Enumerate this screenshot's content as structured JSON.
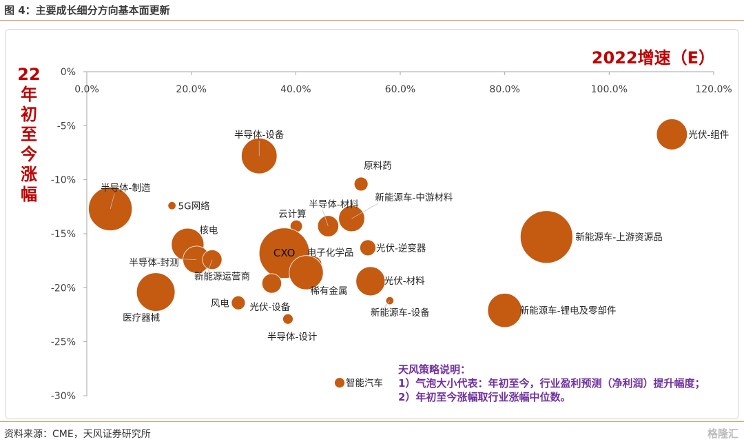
{
  "figure": {
    "title": "图 4：主要成长细分方向基本面更新",
    "source": "资料来源：CME，天风证券研究所",
    "watermark": "格隆汇"
  },
  "note": {
    "heading": "天风策略说明：",
    "line1": "1）气泡大小代表：年初至今，行业盈利预测（净利润）提升幅度；",
    "line2": "2）年初至今涨幅取行业涨幅中位数。"
  },
  "chart_data": {
    "type": "scatter",
    "subtype": "bubble",
    "xlabel": "2022增速（E）",
    "ylabel": "22年初至今涨幅",
    "xlim": [
      0,
      1.2
    ],
    "ylim": [
      -0.3,
      0
    ],
    "x_ticks": [
      "0.0%",
      "20.0%",
      "40.0%",
      "60.0%",
      "80.0%",
      "100.0%",
      "120.0%"
    ],
    "y_ticks": [
      "0%",
      "-5%",
      "-10%",
      "-15%",
      "-20%",
      "-25%",
      "-30%"
    ],
    "x_axis_position": "top",
    "grid": false,
    "bubble_color": "#c55a11",
    "points": [
      {
        "label": "光伏-组件",
        "x": 1.12,
        "y": -0.058,
        "size": 4.5
      },
      {
        "label": "新能源车-上游资源品",
        "x": 0.88,
        "y": -0.153,
        "size": 13
      },
      {
        "label": "新能源车-锂电及零部件",
        "x": 0.8,
        "y": -0.221,
        "size": 5.5
      },
      {
        "label": "新能源车-设备",
        "x": 0.58,
        "y": -0.212,
        "size": 0.3
      },
      {
        "label": "原料药",
        "x": 0.525,
        "y": -0.104,
        "size": 0.9
      },
      {
        "label": "新能源车-中游材料",
        "x": 0.507,
        "y": -0.136,
        "size": 3.2
      },
      {
        "label": "光伏-逆变器",
        "x": 0.538,
        "y": -0.163,
        "size": 1.2
      },
      {
        "label": "光伏-材料",
        "x": 0.543,
        "y": -0.194,
        "size": 4.0
      },
      {
        "label": "半导体-材料",
        "x": 0.462,
        "y": -0.143,
        "size": 2.1
      },
      {
        "label": "云计算",
        "x": 0.401,
        "y": -0.143,
        "size": 0.7
      },
      {
        "label": "CXO",
        "x": 0.378,
        "y": -0.168,
        "size": 12
      },
      {
        "label": "电子化学品",
        "x": 0.435,
        "y": -0.178,
        "size": 1.1
      },
      {
        "label": "稀有金属",
        "x": 0.42,
        "y": -0.186,
        "size": 5.5
      },
      {
        "label": "半导体-设备",
        "x": 0.33,
        "y": -0.078,
        "size": 6
      },
      {
        "label": "光伏-设备",
        "x": 0.354,
        "y": -0.196,
        "size": 1.8
      },
      {
        "label": "半导体-设计",
        "x": 0.385,
        "y": -0.229,
        "size": 0.5
      },
      {
        "label": "风电",
        "x": 0.29,
        "y": -0.214,
        "size": 0.9
      },
      {
        "label": "智能汽车",
        "x": 0.484,
        "y": -0.288,
        "size": 0.5
      },
      {
        "label": "半导体-制造",
        "x": 0.045,
        "y": -0.127,
        "size": 9
      },
      {
        "label": "5G网络",
        "x": 0.163,
        "y": -0.124,
        "size": 0.3
      },
      {
        "label": "核电",
        "x": 0.193,
        "y": -0.16,
        "size": 5
      },
      {
        "label": "半导体-封测",
        "x": 0.21,
        "y": -0.174,
        "size": 3.5
      },
      {
        "label": "新能源运营商",
        "x": 0.24,
        "y": -0.174,
        "size": 1.8
      },
      {
        "label": "医疗器械",
        "x": 0.132,
        "y": -0.204,
        "size": 7
      }
    ]
  }
}
